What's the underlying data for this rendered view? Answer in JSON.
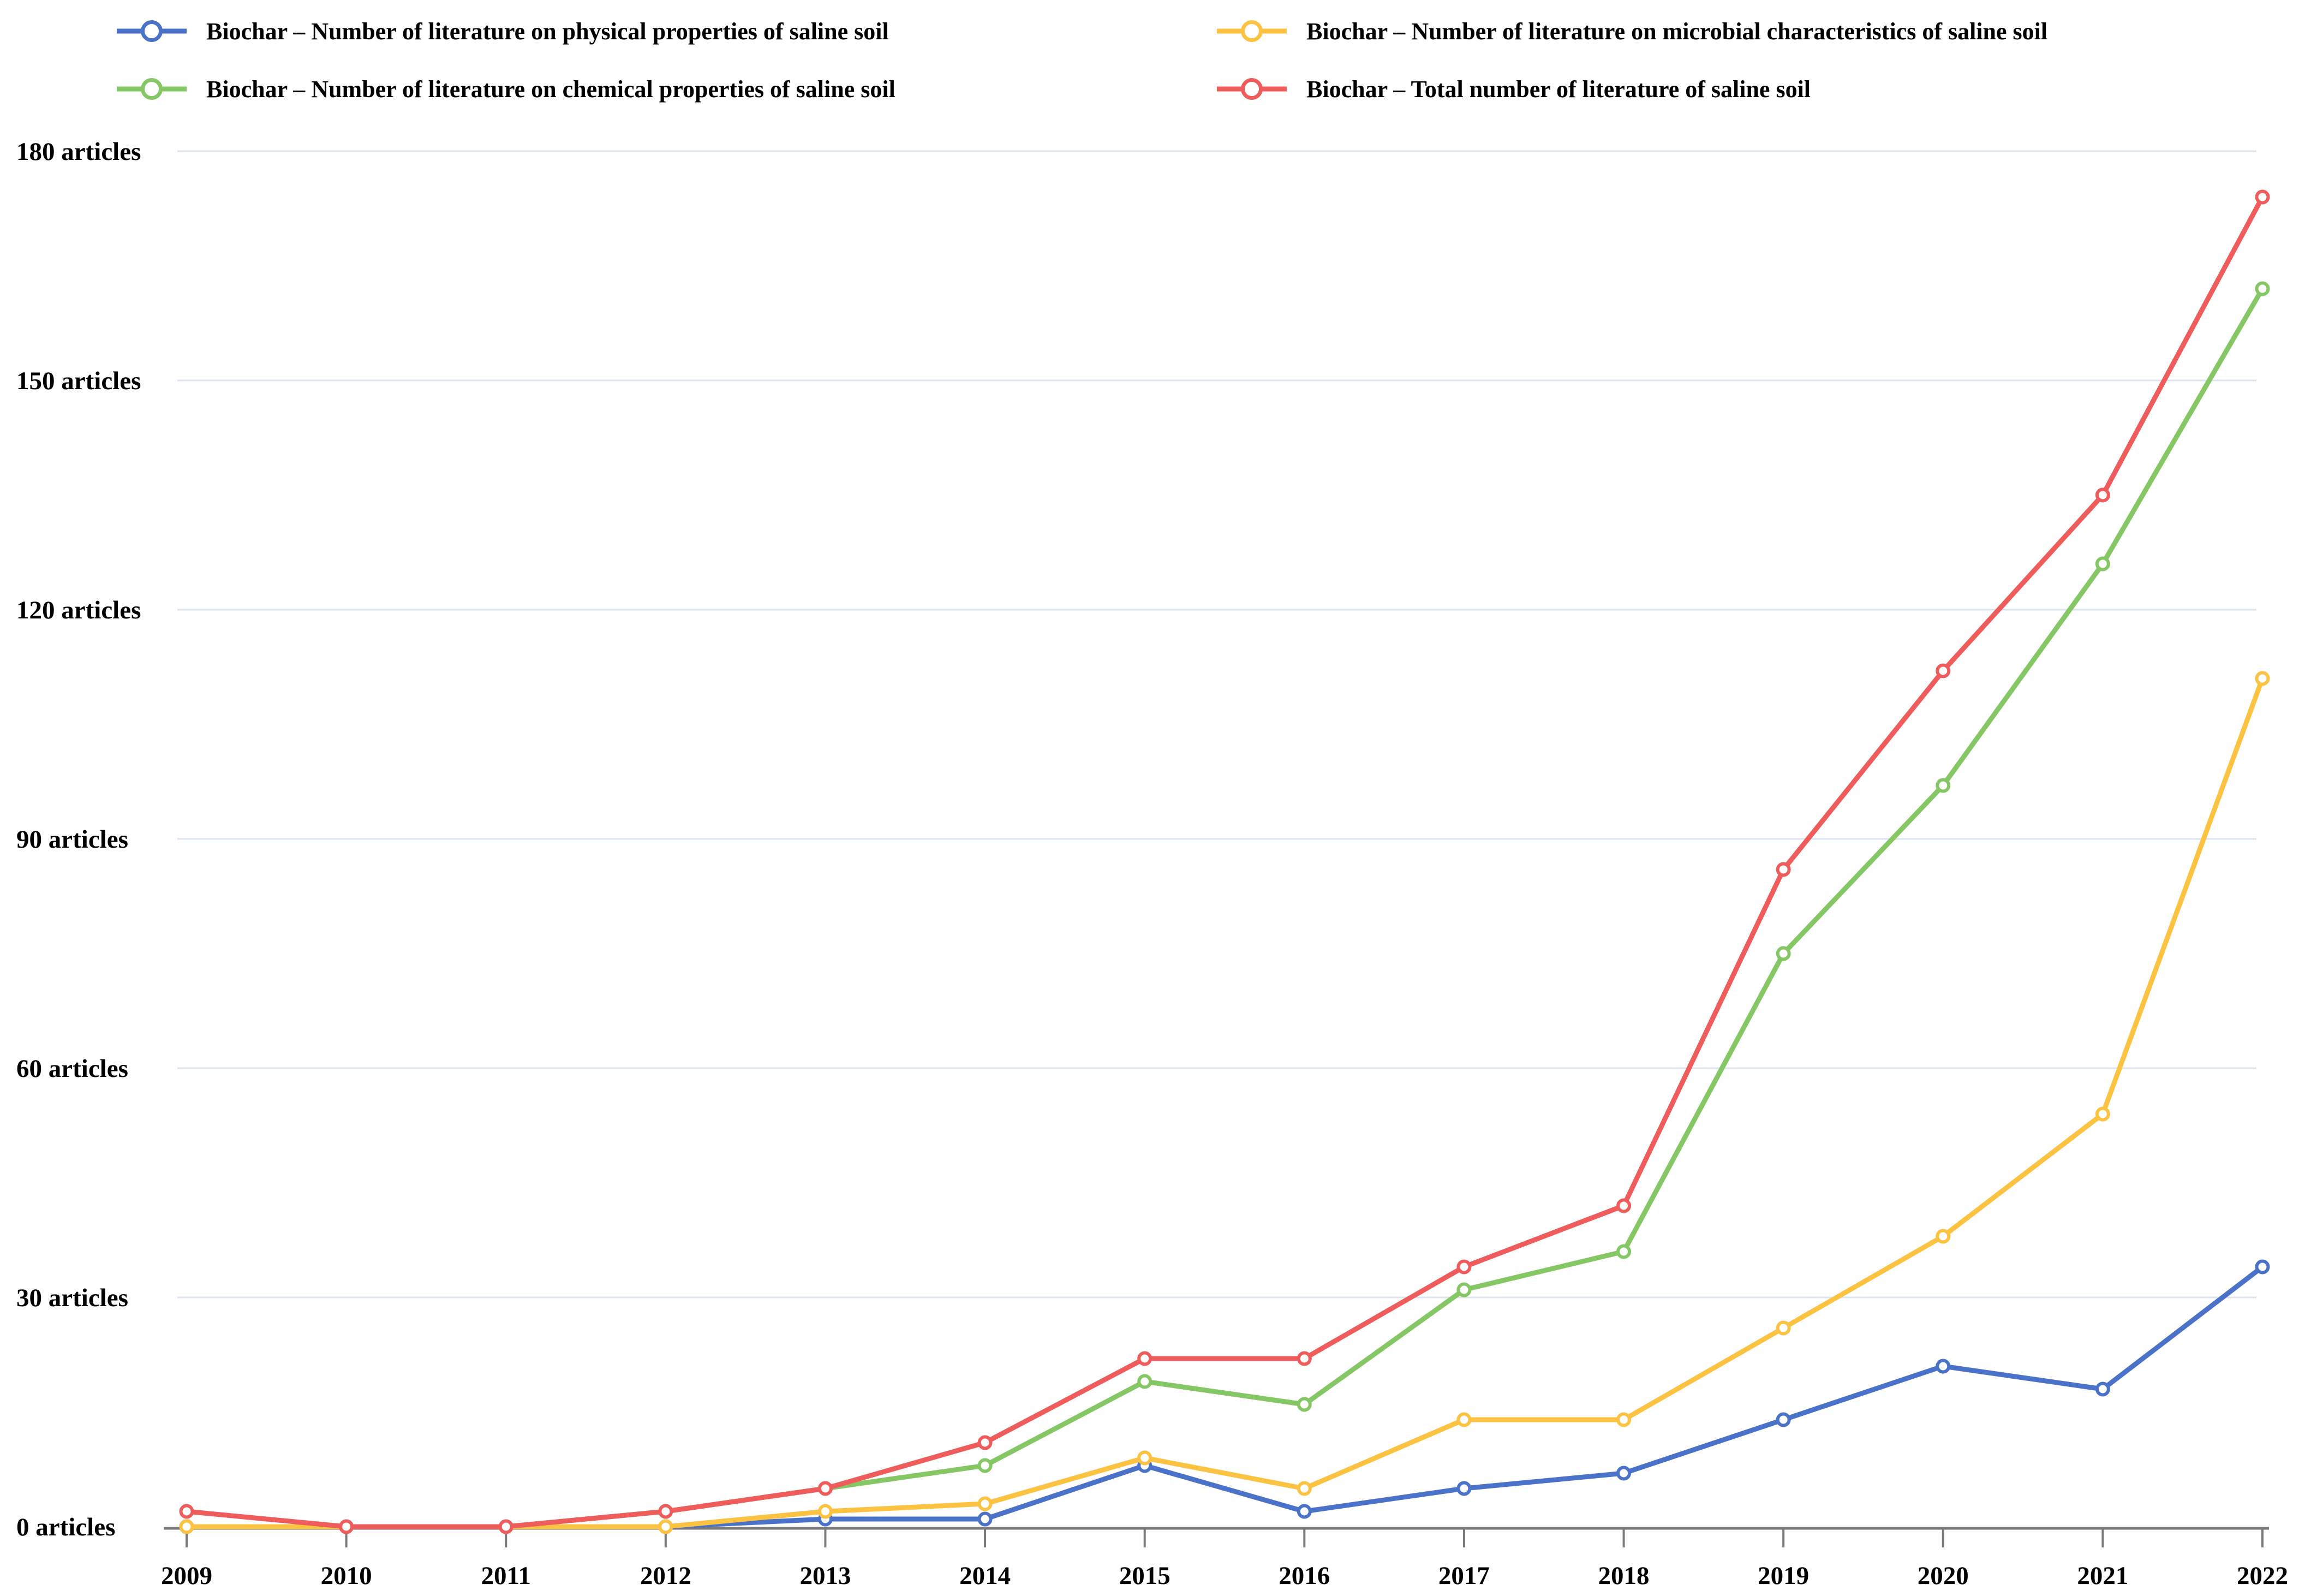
{
  "chart_data": {
    "type": "line",
    "title": "",
    "xlabel": "",
    "ylabel": "",
    "x": [
      2009,
      2010,
      2011,
      2012,
      2013,
      2014,
      2015,
      2016,
      2017,
      2018,
      2019,
      2020,
      2021,
      2022
    ],
    "ylim": [
      0,
      180
    ],
    "y_unit": "articles",
    "y_ticks": [
      {
        "value": 0,
        "label": "0 articles"
      },
      {
        "value": 30,
        "label": "30 articles"
      },
      {
        "value": 60,
        "label": "60 articles"
      },
      {
        "value": 90,
        "label": "90 articles"
      },
      {
        "value": 120,
        "label": "120 articles"
      },
      {
        "value": 150,
        "label": "150 articles"
      },
      {
        "value": 180,
        "label": "180 articles"
      }
    ],
    "grid": "horizontal",
    "legend_position": "top",
    "series": [
      {
        "name": "Biochar – Number of literature on physical properties of saline soil",
        "color": "#4a72c8",
        "values": [
          0,
          0,
          0,
          0,
          1,
          1,
          8,
          2,
          5,
          7,
          14,
          21,
          18,
          34
        ]
      },
      {
        "name": "Biochar – Number of literature on chemical properties of saline soil",
        "color": "#85c765",
        "values": [
          0,
          0,
          0,
          2,
          5,
          8,
          19,
          16,
          31,
          36,
          75,
          97,
          126,
          162
        ]
      },
      {
        "name": "Biochar – Number of literature on microbial characteristics of saline soil",
        "color": "#fcc342",
        "values": [
          0,
          0,
          0,
          0,
          2,
          3,
          9,
          5,
          14,
          14,
          26,
          38,
          54,
          111
        ]
      },
      {
        "name": "Biochar – Total number of literature of saline soil",
        "color": "#ee5c5c",
        "values": [
          2,
          0,
          0,
          2,
          5,
          11,
          22,
          22,
          34,
          42,
          86,
          112,
          135,
          174
        ]
      }
    ]
  },
  "style_colors": {
    "gridline": "#dde4f1",
    "axis": "#7a7a7a",
    "tick": "#7a7a7a",
    "marker_fill": "#ffffff"
  }
}
